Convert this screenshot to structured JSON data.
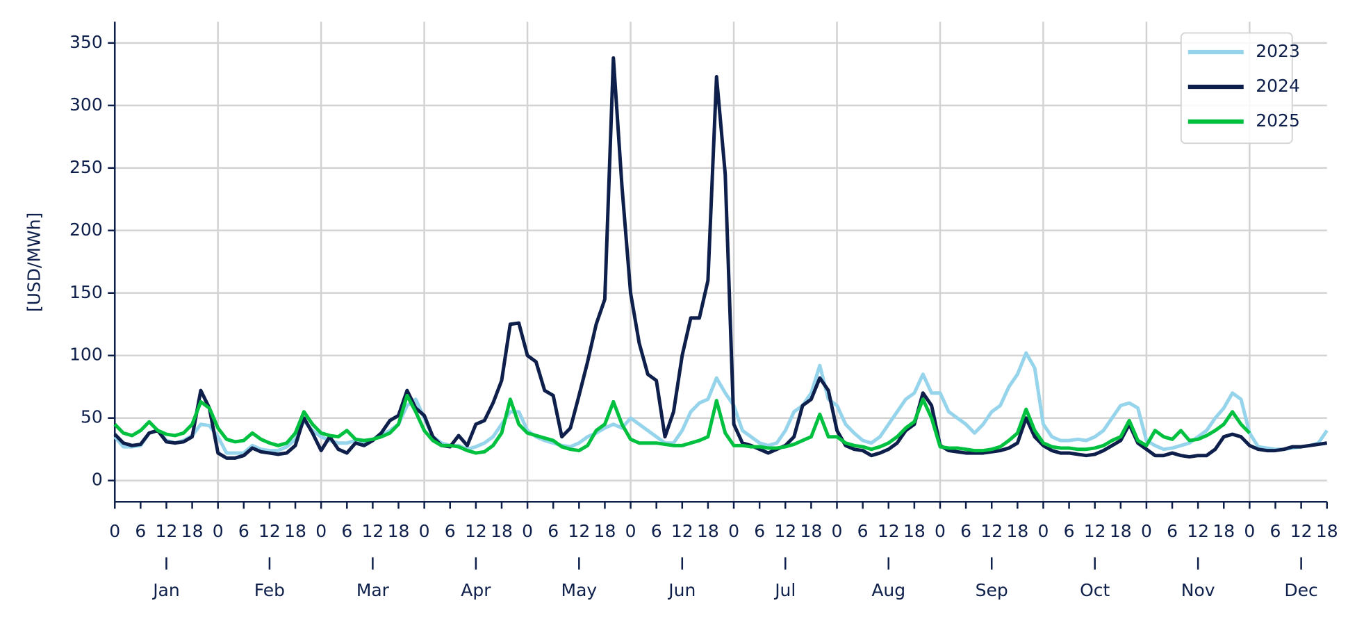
{
  "chart_data": {
    "type": "line",
    "ylabel": "[USD/MWh]",
    "months": [
      "Jan",
      "Feb",
      "Mar",
      "Apr",
      "May",
      "Jun",
      "Jul",
      "Aug",
      "Sep",
      "Oct",
      "Nov",
      "Dec"
    ],
    "hour_ticks": [
      0,
      6,
      12,
      18
    ],
    "ylim": [
      -17,
      367
    ],
    "yticks": [
      0,
      50,
      100,
      150,
      200,
      250,
      300,
      350
    ],
    "grid": true,
    "legend": "upper right",
    "series": [
      {
        "name": "2023",
        "color": "#96d4ec",
        "values": [
          35,
          27,
          27,
          28,
          38,
          40,
          32,
          30,
          32,
          36,
          45,
          44,
          35,
          22,
          22,
          22,
          28,
          25,
          24,
          24,
          27,
          33,
          48,
          40,
          35,
          32,
          30,
          30,
          32,
          30,
          33,
          36,
          40,
          45,
          60,
          65,
          50,
          35,
          30,
          28,
          28,
          25,
          27,
          30,
          35,
          45,
          55,
          55,
          40,
          35,
          32,
          30,
          28,
          27,
          30,
          35,
          38,
          42,
          45,
          42,
          50,
          45,
          40,
          35,
          30,
          30,
          40,
          55,
          62,
          65,
          82,
          70,
          60,
          40,
          35,
          30,
          28,
          30,
          40,
          55,
          60,
          70,
          92,
          65,
          60,
          45,
          38,
          32,
          30,
          35,
          45,
          55,
          65,
          70,
          85,
          70,
          70,
          55,
          50,
          45,
          38,
          45,
          55,
          60,
          75,
          85,
          102,
          90,
          45,
          35,
          32,
          32,
          33,
          32,
          35,
          40,
          50,
          60,
          62,
          58,
          32,
          28,
          25,
          26,
          28,
          30,
          35,
          40,
          50,
          58,
          70,
          65,
          38,
          27,
          26,
          25,
          25,
          26,
          27,
          28,
          30,
          40
        ]
      },
      {
        "name": "2024",
        "color": "#0d1f4a",
        "values": [
          37,
          30,
          28,
          29,
          38,
          40,
          31,
          30,
          31,
          35,
          72,
          58,
          22,
          18,
          18,
          20,
          26,
          23,
          22,
          21,
          22,
          28,
          50,
          38,
          24,
          35,
          25,
          22,
          30,
          28,
          32,
          38,
          48,
          52,
          72,
          58,
          52,
          35,
          28,
          27,
          36,
          28,
          45,
          48,
          62,
          80,
          125,
          126,
          100,
          95,
          72,
          68,
          35,
          42,
          68,
          95,
          125,
          145,
          338,
          235,
          150,
          110,
          85,
          80,
          35,
          55,
          100,
          130,
          130,
          160,
          323,
          245,
          45,
          30,
          28,
          25,
          22,
          25,
          28,
          35,
          60,
          65,
          82,
          72,
          40,
          28,
          25,
          24,
          20,
          22,
          25,
          30,
          40,
          45,
          70,
          60,
          28,
          24,
          23,
          22,
          22,
          22,
          23,
          24,
          26,
          30,
          50,
          35,
          28,
          24,
          22,
          22,
          21,
          20,
          21,
          24,
          28,
          32,
          45,
          30,
          25,
          20,
          20,
          22,
          20,
          19,
          20,
          20,
          25,
          35,
          37,
          35,
          28,
          25,
          24,
          24,
          25,
          27,
          27,
          28,
          29,
          30
        ]
      },
      {
        "name": "2025",
        "color": "#00c040",
        "values": [
          45,
          38,
          36,
          40,
          47,
          40,
          37,
          36,
          38,
          45,
          63,
          58,
          42,
          33,
          31,
          32,
          38,
          33,
          30,
          28,
          30,
          38,
          55,
          45,
          38,
          36,
          35,
          40,
          33,
          32,
          33,
          35,
          38,
          45,
          68,
          55,
          40,
          32,
          28,
          28,
          27,
          24,
          22,
          23,
          28,
          38,
          65,
          45,
          38,
          36,
          34,
          32,
          27,
          25,
          24,
          28,
          40,
          45,
          63,
          45,
          33,
          30,
          30,
          30,
          29,
          28,
          28,
          30,
          32,
          35,
          64,
          38,
          28,
          28,
          27,
          27,
          26,
          26,
          27,
          29,
          32,
          35,
          53,
          35,
          35,
          30,
          28,
          27,
          25,
          27,
          30,
          35,
          42,
          47,
          65,
          50,
          27,
          26,
          26,
          25,
          24,
          24,
          25,
          27,
          32,
          38,
          57,
          40,
          30,
          27,
          26,
          26,
          25,
          25,
          26,
          28,
          32,
          35,
          48,
          32,
          28,
          40,
          35,
          33,
          40,
          32,
          33,
          36,
          40,
          45,
          55,
          45,
          38,
          null,
          null,
          null,
          null,
          null,
          null,
          null,
          null,
          null
        ]
      }
    ]
  }
}
